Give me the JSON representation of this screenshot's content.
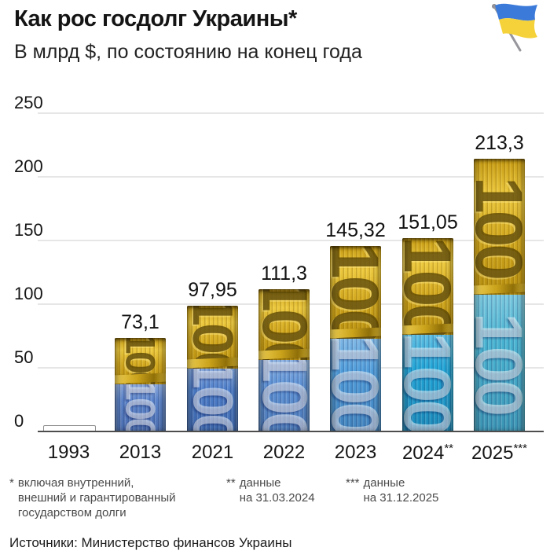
{
  "header": {
    "title": "Как рос госдолг Украины*",
    "subtitle": "В млрд $, по состоянию на конец года",
    "flag_icon": "ukraine-flag-icon",
    "flag_colors": {
      "blue": "#3b7ad9",
      "yellow": "#f5d23a",
      "pole": "#96969c"
    }
  },
  "chart_data": {
    "type": "bar",
    "title": "Как рос госдолг Украины*",
    "subtitle": "В млрд $, по состоянию на конец года",
    "unit": "млрд $",
    "ylim": [
      0,
      250
    ],
    "yticks": [
      0,
      50,
      100,
      150,
      200,
      250
    ],
    "grid": true,
    "legend": false,
    "categories": [
      "1993",
      "2013",
      "2021",
      "2022",
      "2023",
      "2024**",
      "2025***"
    ],
    "values": [
      4.3,
      73.1,
      97.95,
      111.3,
      145.32,
      151.05,
      213.3
    ],
    "bars": [
      {
        "year": "1993",
        "marks": "",
        "value": 4.3,
        "label": "",
        "style": "outline",
        "blue": "#ffffff"
      },
      {
        "year": "2013",
        "marks": "",
        "value": 73.1,
        "label": "73,1",
        "style": "banknote",
        "blue": "#5b84cb"
      },
      {
        "year": "2021",
        "marks": "",
        "value": 97.95,
        "label": "97,95",
        "style": "banknote",
        "blue": "#4c7dc9"
      },
      {
        "year": "2022",
        "marks": "",
        "value": 111.3,
        "label": "111,3",
        "style": "banknote",
        "blue": "#5d92d6"
      },
      {
        "year": "2023",
        "marks": "",
        "value": 145.32,
        "label": "145,32",
        "style": "banknote",
        "blue": "#4f9ddb"
      },
      {
        "year": "2024",
        "marks": "**",
        "value": 151.05,
        "label": "151,05",
        "style": "banknote",
        "blue": "#21a5d6"
      },
      {
        "year": "2025",
        "marks": "***",
        "value": 213.3,
        "label": "213,3",
        "style": "banknote",
        "blue": "#49b4d2"
      }
    ],
    "bar_yellow": {
      "base": "#d2a81f",
      "light": "#ecc93f",
      "dark": "#8a6d0c"
    },
    "note_number": "100"
  },
  "footnotes": [
    {
      "mark": "*",
      "lines": [
        "включая внутренний,",
        "внешний и гарантированный",
        "государством долги"
      ]
    },
    {
      "mark": "**",
      "lines": [
        "данные",
        "на 31.03.2024"
      ]
    },
    {
      "mark": "***",
      "lines": [
        "данные",
        "на 31.12.2025"
      ]
    }
  ],
  "source": "Источники: Министерство финансов Украины"
}
